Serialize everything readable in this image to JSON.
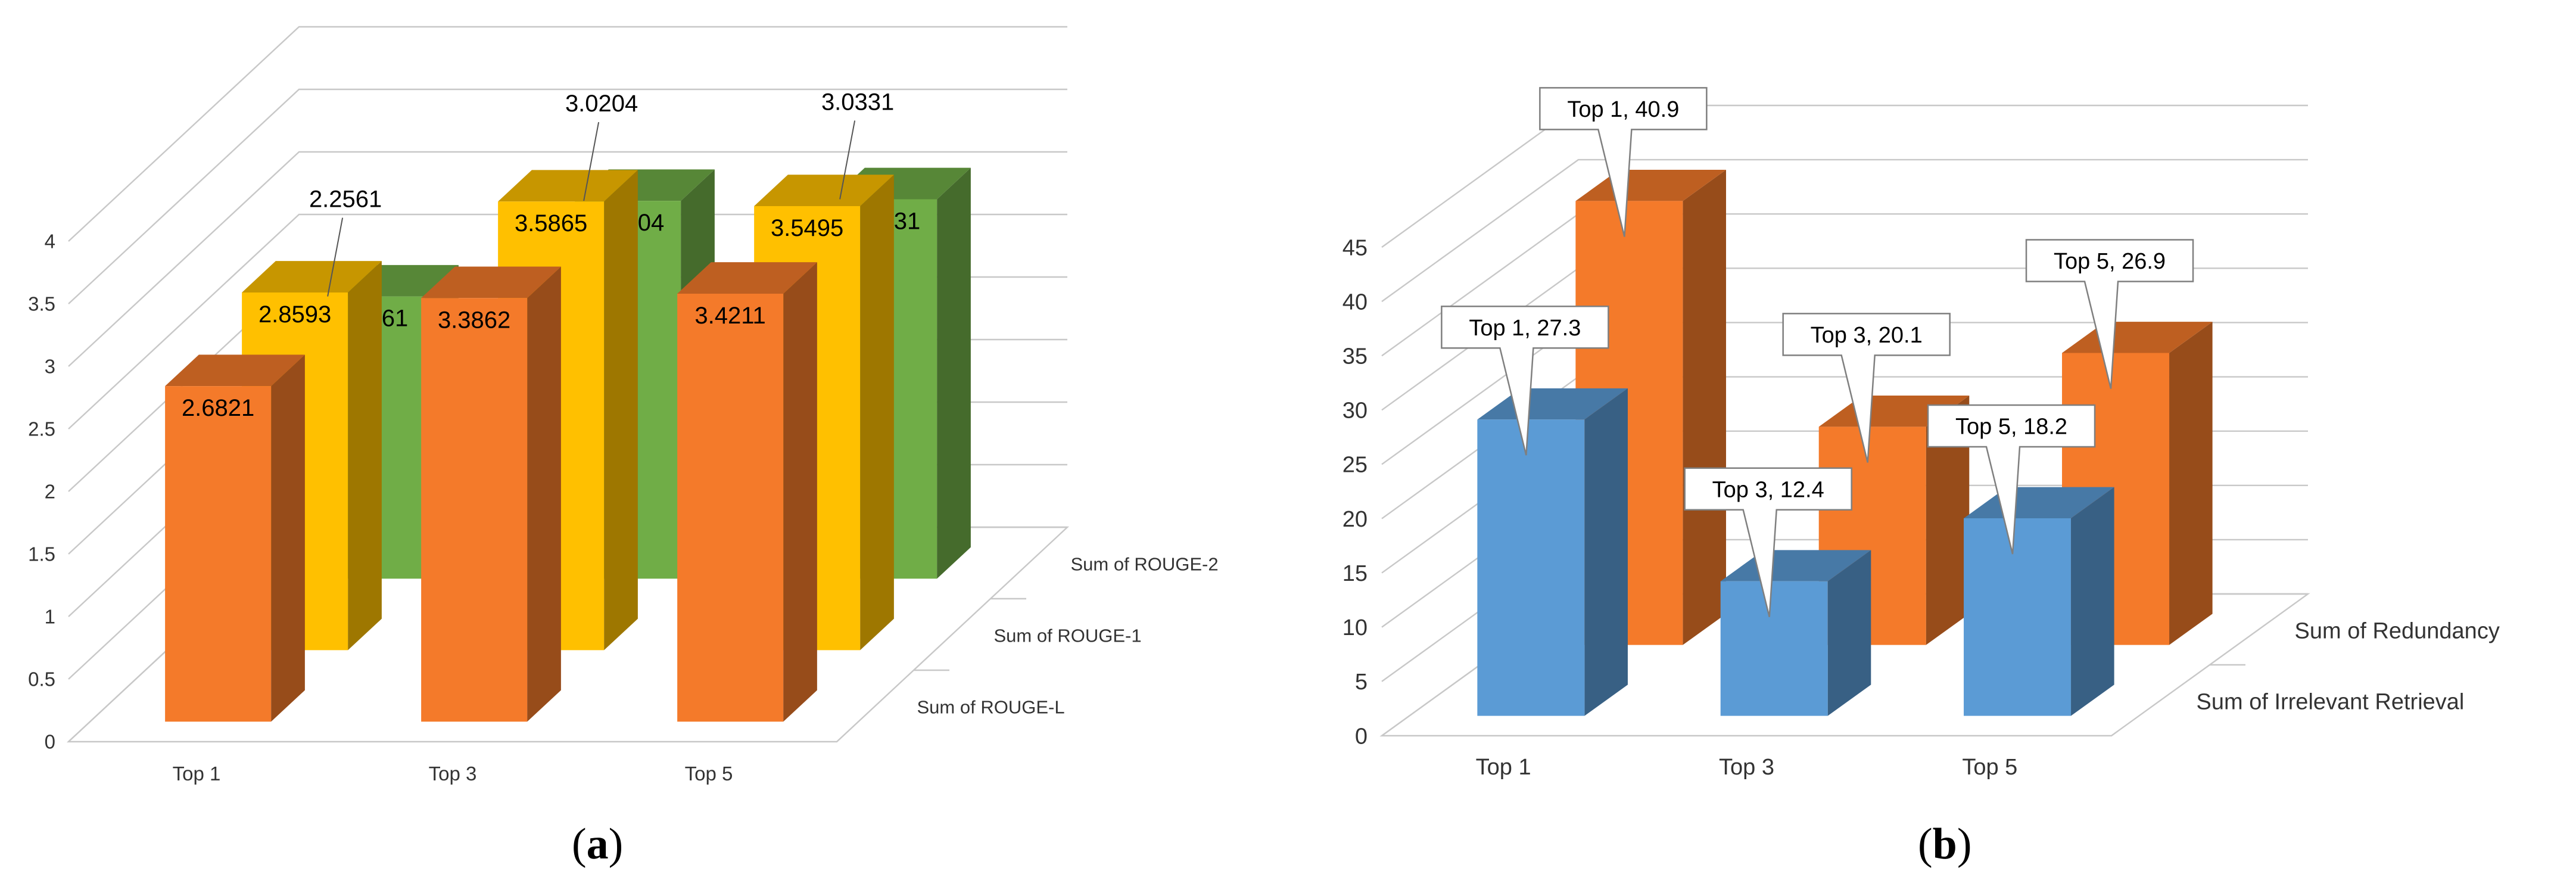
{
  "panels": [
    {
      "id": "a",
      "caption_open": "(",
      "caption_letter": "a",
      "caption_close": ")"
    },
    {
      "id": "b",
      "caption_open": "(",
      "caption_letter": "b",
      "caption_close": ")"
    }
  ],
  "chart_data": [
    {
      "type": "bar",
      "style": "3d-clustered-depth",
      "categories": [
        "Top 1",
        "Top 3",
        "Top 5"
      ],
      "ylim": [
        0,
        4
      ],
      "yticks": [
        "0",
        "0.5",
        "1",
        "1.5",
        "2",
        "2.5",
        "3",
        "3.5",
        "4"
      ],
      "grid": true,
      "series": [
        {
          "name": "Sum of ROUGE-L",
          "values": [
            2.6821,
            3.3862,
            3.4211
          ],
          "labels": [
            "2.6821",
            "3.3862",
            "3.4211"
          ],
          "color": "#f47a2a"
        },
        {
          "name": "Sum of ROUGE-1",
          "values": [
            2.8593,
            3.5865,
            3.5495
          ],
          "labels": [
            "2.8593",
            "3.5865",
            "3.5495"
          ],
          "color": "#ffc000"
        },
        {
          "name": "Sum of ROUGE-2",
          "values": [
            2.2561,
            3.0204,
            3.0331
          ],
          "labels": [
            "2.2561",
            "3.0204",
            "3.0331"
          ],
          "color": "#70ad47"
        }
      ]
    },
    {
      "type": "bar",
      "style": "3d-clustered-depth",
      "categories": [
        "Top 1",
        "Top 3",
        "Top 5"
      ],
      "ylim": [
        0,
        45
      ],
      "yticks": [
        "0",
        "5",
        "10",
        "15",
        "20",
        "25",
        "30",
        "35",
        "40",
        "45"
      ],
      "grid": true,
      "series": [
        {
          "name": "Sum of Irrelevant Retrieval",
          "values": [
            27.3,
            12.4,
            18.2
          ],
          "labels": [
            "Top 1, 27.3",
            "Top 3, 12.4",
            "Top 5, 18.2"
          ],
          "color": "#5b9bd5"
        },
        {
          "name": "Sum of Redundancy",
          "values": [
            40.9,
            20.1,
            26.9
          ],
          "labels": [
            "Top 1, 40.9",
            "Top 3, 20.1",
            "Top 5, 26.9"
          ],
          "color": "#f47a2a"
        }
      ]
    }
  ]
}
